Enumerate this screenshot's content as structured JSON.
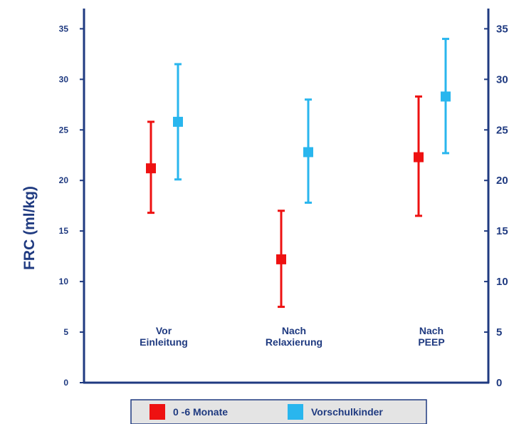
{
  "chart_data": {
    "type": "scatter",
    "subtype": "error-bar",
    "ylabel": "FRC (ml/kg)",
    "ylim": [
      0,
      37
    ],
    "yticks": [
      0,
      5,
      10,
      15,
      20,
      25,
      30,
      35
    ],
    "categories": [
      [
        "Vor",
        "Einleitung"
      ],
      [
        "Nach",
        "Relaxierung"
      ],
      [
        "Nach",
        "PEEP"
      ]
    ],
    "series": [
      {
        "name": "0 -6 Monate",
        "color": "#ee1111",
        "values": [
          21.2,
          12.2,
          22.3
        ],
        "upper": [
          25.8,
          17.0,
          28.3
        ],
        "lower": [
          16.8,
          7.5,
          16.5
        ]
      },
      {
        "name": "Vorschulkinder",
        "color": "#29b6ee",
        "values": [
          25.8,
          22.8,
          28.3
        ],
        "upper": [
          31.5,
          28.0,
          34.0
        ],
        "lower": [
          20.1,
          17.8,
          22.7
        ]
      }
    ],
    "grid": false,
    "legend_position": "bottom",
    "axis_color": "#1f3a80"
  }
}
